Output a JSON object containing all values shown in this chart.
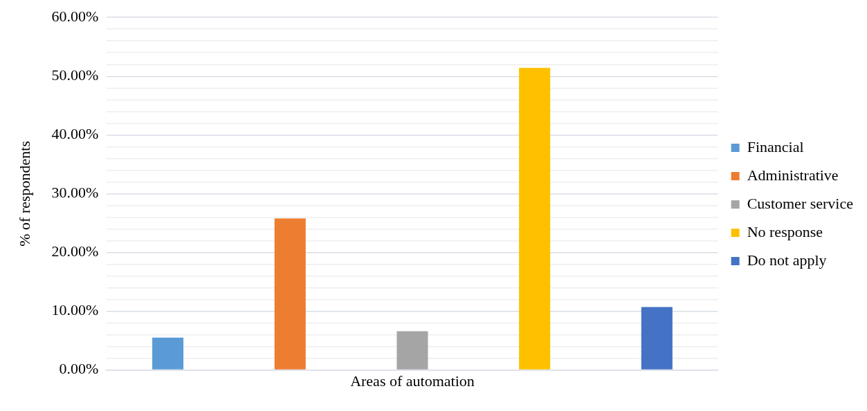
{
  "chart_data": {
    "type": "bar",
    "xlabel": "Areas of automation",
    "ylabel": "% of respondents",
    "categories": [
      null
    ],
    "series": [
      {
        "name": "Financial",
        "color": "#5b9bd5",
        "values": [
          5.5
        ]
      },
      {
        "name": "Administrative",
        "color": "#ed7d31",
        "values": [
          25.8
        ]
      },
      {
        "name": "Customer service",
        "color": "#a5a5a5",
        "values": [
          6.6
        ]
      },
      {
        "name": "No response",
        "color": "#ffc000",
        "values": [
          51.4
        ]
      },
      {
        "name": "Do not apply",
        "color": "#4472c4",
        "values": [
          10.7
        ]
      }
    ],
    "ylim": [
      0,
      60
    ],
    "yticks": [
      {
        "value": 0,
        "label": "0.00%"
      },
      {
        "value": 2,
        "label": null
      },
      {
        "value": 4,
        "label": null
      },
      {
        "value": 6,
        "label": null
      },
      {
        "value": 8,
        "label": null
      },
      {
        "value": 10,
        "label": "10.00%"
      },
      {
        "value": 12,
        "label": null
      },
      {
        "value": 14,
        "label": null
      },
      {
        "value": 16,
        "label": null
      },
      {
        "value": 18,
        "label": null
      },
      {
        "value": 20,
        "label": "20.00%"
      },
      {
        "value": 22,
        "label": null
      },
      {
        "value": 24,
        "label": null
      },
      {
        "value": 26,
        "label": null
      },
      {
        "value": 28,
        "label": null
      },
      {
        "value": 30,
        "label": "30.00%"
      },
      {
        "value": 32,
        "label": null
      },
      {
        "value": 34,
        "label": null
      },
      {
        "value": 36,
        "label": null
      },
      {
        "value": 38,
        "label": null
      },
      {
        "value": 40,
        "label": "40.00%"
      },
      {
        "value": 42,
        "label": null
      },
      {
        "value": 44,
        "label": null
      },
      {
        "value": 46,
        "label": null
      },
      {
        "value": 48,
        "label": null
      },
      {
        "value": 50,
        "label": "50.00%"
      },
      {
        "value": 52,
        "label": null
      },
      {
        "value": 54,
        "label": null
      },
      {
        "value": 56,
        "label": null
      },
      {
        "value": 58,
        "label": null
      },
      {
        "value": 60,
        "label": "60.00%"
      }
    ],
    "grid": "y",
    "legend": "right"
  }
}
